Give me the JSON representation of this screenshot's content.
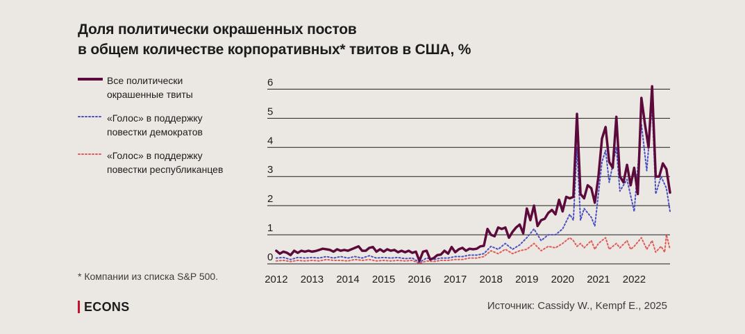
{
  "title_line1": "Доля политически окрашенных постов",
  "title_line2": "в общем количестве корпоративных* твитов в США, %",
  "legend": [
    {
      "label": "Все политически\nокрашенные твиты",
      "color": "#5c0a3c",
      "style": "solid"
    },
    {
      "label": "«Голос» в поддержку\nповестки демократов",
      "color": "#4a4ec0",
      "style": "dotted"
    },
    {
      "label": "«Голос» в поддержку\nповестки республиканцев",
      "color": "#e05a5a",
      "style": "dotted"
    }
  ],
  "footnote": "* Компании из списка S&P 500.",
  "brand": "ECONS",
  "source": "Источник: Cassidy W., Kempf E., 2025",
  "colors": {
    "background": "#ebe8e3",
    "grid": "#1c1c1c",
    "all": "#5c0a3c",
    "dem": "#4a4ec0",
    "rep": "#e05a5a",
    "brand_accent": "#c8102e"
  },
  "chart_data": {
    "type": "line",
    "title": "Доля политически окрашенных постов в общем количестве корпоративных* твитов в США, %",
    "x_ticks": [
      "2012",
      "2013",
      "2014",
      "2015",
      "2016",
      "2017",
      "2018",
      "2019",
      "2020",
      "2021",
      "2022"
    ],
    "y_ticks": [
      "0",
      "1",
      "2",
      "3",
      "4",
      "5",
      "6"
    ],
    "ylim": [
      0,
      6.2
    ],
    "xlim": [
      2011.75,
      2023.0
    ],
    "grid": true,
    "series": [
      {
        "name": "Все политически окрашенные твиты",
        "style": "solid",
        "points": [
          [
            2012.0,
            0.45
          ],
          [
            2012.1,
            0.35
          ],
          [
            2012.2,
            0.42
          ],
          [
            2012.3,
            0.38
          ],
          [
            2012.4,
            0.3
          ],
          [
            2012.5,
            0.45
          ],
          [
            2012.6,
            0.38
          ],
          [
            2012.7,
            0.45
          ],
          [
            2012.8,
            0.42
          ],
          [
            2012.9,
            0.45
          ],
          [
            2013.0,
            0.42
          ],
          [
            2013.1,
            0.44
          ],
          [
            2013.2,
            0.48
          ],
          [
            2013.3,
            0.52
          ],
          [
            2013.4,
            0.5
          ],
          [
            2013.5,
            0.48
          ],
          [
            2013.6,
            0.42
          ],
          [
            2013.7,
            0.5
          ],
          [
            2013.8,
            0.45
          ],
          [
            2013.9,
            0.48
          ],
          [
            2014.0,
            0.45
          ],
          [
            2014.1,
            0.5
          ],
          [
            2014.2,
            0.55
          ],
          [
            2014.3,
            0.6
          ],
          [
            2014.4,
            0.45
          ],
          [
            2014.5,
            0.45
          ],
          [
            2014.6,
            0.55
          ],
          [
            2014.7,
            0.58
          ],
          [
            2014.8,
            0.42
          ],
          [
            2014.9,
            0.5
          ],
          [
            2015.0,
            0.42
          ],
          [
            2015.1,
            0.5
          ],
          [
            2015.2,
            0.45
          ],
          [
            2015.3,
            0.48
          ],
          [
            2015.4,
            0.4
          ],
          [
            2015.5,
            0.45
          ],
          [
            2015.6,
            0.4
          ],
          [
            2015.7,
            0.45
          ],
          [
            2015.8,
            0.38
          ],
          [
            2015.9,
            0.42
          ],
          [
            2016.0,
            0.1
          ],
          [
            2016.1,
            0.42
          ],
          [
            2016.2,
            0.45
          ],
          [
            2016.3,
            0.15
          ],
          [
            2016.4,
            0.2
          ],
          [
            2016.5,
            0.3
          ],
          [
            2016.6,
            0.32
          ],
          [
            2016.7,
            0.45
          ],
          [
            2016.8,
            0.35
          ],
          [
            2016.9,
            0.58
          ],
          [
            2017.0,
            0.4
          ],
          [
            2017.1,
            0.5
          ],
          [
            2017.2,
            0.55
          ],
          [
            2017.3,
            0.45
          ],
          [
            2017.4,
            0.52
          ],
          [
            2017.5,
            0.5
          ],
          [
            2017.6,
            0.52
          ],
          [
            2017.7,
            0.6
          ],
          [
            2017.8,
            0.62
          ],
          [
            2017.9,
            1.2
          ],
          [
            2018.0,
            1.0
          ],
          [
            2018.1,
            0.95
          ],
          [
            2018.2,
            1.25
          ],
          [
            2018.3,
            1.2
          ],
          [
            2018.4,
            1.25
          ],
          [
            2018.5,
            0.9
          ],
          [
            2018.6,
            1.1
          ],
          [
            2018.7,
            1.25
          ],
          [
            2018.8,
            1.35
          ],
          [
            2018.9,
            1.05
          ],
          [
            2019.0,
            1.9
          ],
          [
            2019.1,
            1.5
          ],
          [
            2019.2,
            2.0
          ],
          [
            2019.3,
            1.3
          ],
          [
            2019.4,
            1.5
          ],
          [
            2019.5,
            1.55
          ],
          [
            2019.6,
            1.75
          ],
          [
            2019.7,
            1.85
          ],
          [
            2019.8,
            1.7
          ],
          [
            2019.9,
            2.2
          ],
          [
            2020.0,
            1.8
          ],
          [
            2020.1,
            2.3
          ],
          [
            2020.2,
            2.25
          ],
          [
            2020.3,
            2.3
          ],
          [
            2020.4,
            5.15
          ],
          [
            2020.5,
            2.4
          ],
          [
            2020.6,
            2.25
          ],
          [
            2020.7,
            2.7
          ],
          [
            2020.8,
            2.6
          ],
          [
            2020.9,
            2.1
          ],
          [
            2021.0,
            3.0
          ],
          [
            2021.1,
            4.3
          ],
          [
            2021.2,
            4.7
          ],
          [
            2021.3,
            3.5
          ],
          [
            2021.4,
            3.3
          ],
          [
            2021.5,
            5.05
          ],
          [
            2021.6,
            3.0
          ],
          [
            2021.7,
            2.8
          ],
          [
            2021.8,
            3.4
          ],
          [
            2021.9,
            2.7
          ],
          [
            2022.0,
            3.3
          ],
          [
            2022.1,
            2.4
          ],
          [
            2022.2,
            5.7
          ],
          [
            2022.3,
            4.8
          ],
          [
            2022.4,
            4.0
          ],
          [
            2022.5,
            6.1
          ],
          [
            2022.6,
            3.0
          ],
          [
            2022.7,
            3.0
          ],
          [
            2022.8,
            3.45
          ],
          [
            2022.9,
            3.25
          ],
          [
            2023.0,
            2.45
          ]
        ]
      },
      {
        "name": "«Голос» в поддержку повестки демократов",
        "style": "dotted",
        "points": [
          [
            2012.0,
            0.2
          ],
          [
            2012.2,
            0.22
          ],
          [
            2012.4,
            0.15
          ],
          [
            2012.6,
            0.22
          ],
          [
            2012.8,
            0.2
          ],
          [
            2013.0,
            0.22
          ],
          [
            2013.2,
            0.2
          ],
          [
            2013.4,
            0.25
          ],
          [
            2013.6,
            0.2
          ],
          [
            2013.8,
            0.25
          ],
          [
            2014.0,
            0.2
          ],
          [
            2014.2,
            0.25
          ],
          [
            2014.4,
            0.2
          ],
          [
            2014.6,
            0.28
          ],
          [
            2014.8,
            0.2
          ],
          [
            2015.0,
            0.22
          ],
          [
            2015.2,
            0.2
          ],
          [
            2015.4,
            0.22
          ],
          [
            2015.6,
            0.18
          ],
          [
            2015.8,
            0.2
          ],
          [
            2016.0,
            0.05
          ],
          [
            2016.2,
            0.2
          ],
          [
            2016.4,
            0.15
          ],
          [
            2016.6,
            0.2
          ],
          [
            2016.8,
            0.2
          ],
          [
            2017.0,
            0.25
          ],
          [
            2017.2,
            0.25
          ],
          [
            2017.4,
            0.3
          ],
          [
            2017.6,
            0.3
          ],
          [
            2017.8,
            0.35
          ],
          [
            2018.0,
            0.6
          ],
          [
            2018.2,
            0.5
          ],
          [
            2018.4,
            0.7
          ],
          [
            2018.6,
            0.5
          ],
          [
            2018.8,
            0.65
          ],
          [
            2019.0,
            0.9
          ],
          [
            2019.2,
            1.2
          ],
          [
            2019.4,
            0.8
          ],
          [
            2019.6,
            1.0
          ],
          [
            2019.8,
            1.0
          ],
          [
            2020.0,
            1.2
          ],
          [
            2020.2,
            1.7
          ],
          [
            2020.3,
            1.5
          ],
          [
            2020.4,
            4.0
          ],
          [
            2020.5,
            1.5
          ],
          [
            2020.6,
            1.9
          ],
          [
            2020.8,
            1.6
          ],
          [
            2020.9,
            1.3
          ],
          [
            2021.1,
            3.5
          ],
          [
            2021.2,
            3.9
          ],
          [
            2021.3,
            2.8
          ],
          [
            2021.5,
            4.0
          ],
          [
            2021.6,
            2.5
          ],
          [
            2021.8,
            2.9
          ],
          [
            2022.0,
            1.8
          ],
          [
            2022.2,
            4.8
          ],
          [
            2022.35,
            3.2
          ],
          [
            2022.5,
            5.5
          ],
          [
            2022.6,
            2.4
          ],
          [
            2022.75,
            3.0
          ],
          [
            2022.9,
            2.6
          ],
          [
            2023.0,
            1.8
          ]
        ]
      },
      {
        "name": "«Голос» в поддержку повестки республиканцев",
        "style": "dotted",
        "points": [
          [
            2012.0,
            0.1
          ],
          [
            2012.2,
            0.12
          ],
          [
            2012.4,
            0.08
          ],
          [
            2012.6,
            0.12
          ],
          [
            2012.8,
            0.1
          ],
          [
            2013.0,
            0.12
          ],
          [
            2013.2,
            0.1
          ],
          [
            2013.4,
            0.15
          ],
          [
            2013.6,
            0.12
          ],
          [
            2013.8,
            0.12
          ],
          [
            2014.0,
            0.1
          ],
          [
            2014.2,
            0.15
          ],
          [
            2014.4,
            0.12
          ],
          [
            2014.6,
            0.15
          ],
          [
            2014.8,
            0.1
          ],
          [
            2015.0,
            0.12
          ],
          [
            2015.2,
            0.1
          ],
          [
            2015.4,
            0.12
          ],
          [
            2015.6,
            0.1
          ],
          [
            2015.8,
            0.12
          ],
          [
            2016.0,
            0.02
          ],
          [
            2016.2,
            0.1
          ],
          [
            2016.4,
            0.08
          ],
          [
            2016.6,
            0.12
          ],
          [
            2016.8,
            0.12
          ],
          [
            2017.0,
            0.15
          ],
          [
            2017.2,
            0.15
          ],
          [
            2017.4,
            0.2
          ],
          [
            2017.6,
            0.2
          ],
          [
            2017.8,
            0.25
          ],
          [
            2018.0,
            0.45
          ],
          [
            2018.2,
            0.35
          ],
          [
            2018.4,
            0.5
          ],
          [
            2018.6,
            0.35
          ],
          [
            2018.8,
            0.45
          ],
          [
            2019.0,
            0.5
          ],
          [
            2019.2,
            0.7
          ],
          [
            2019.4,
            0.45
          ],
          [
            2019.6,
            0.6
          ],
          [
            2019.8,
            0.55
          ],
          [
            2020.0,
            0.7
          ],
          [
            2020.2,
            0.9
          ],
          [
            2020.3,
            0.8
          ],
          [
            2020.4,
            0.6
          ],
          [
            2020.5,
            0.7
          ],
          [
            2020.6,
            0.55
          ],
          [
            2020.8,
            0.8
          ],
          [
            2020.9,
            0.5
          ],
          [
            2021.0,
            0.7
          ],
          [
            2021.2,
            0.9
          ],
          [
            2021.3,
            0.5
          ],
          [
            2021.5,
            0.7
          ],
          [
            2021.6,
            0.55
          ],
          [
            2021.8,
            0.8
          ],
          [
            2021.9,
            0.5
          ],
          [
            2022.0,
            0.6
          ],
          [
            2022.2,
            0.9
          ],
          [
            2022.35,
            0.5
          ],
          [
            2022.5,
            0.8
          ],
          [
            2022.6,
            0.4
          ],
          [
            2022.75,
            0.6
          ],
          [
            2022.85,
            0.4
          ],
          [
            2022.9,
            1.0
          ],
          [
            2023.0,
            0.5
          ]
        ]
      }
    ]
  }
}
